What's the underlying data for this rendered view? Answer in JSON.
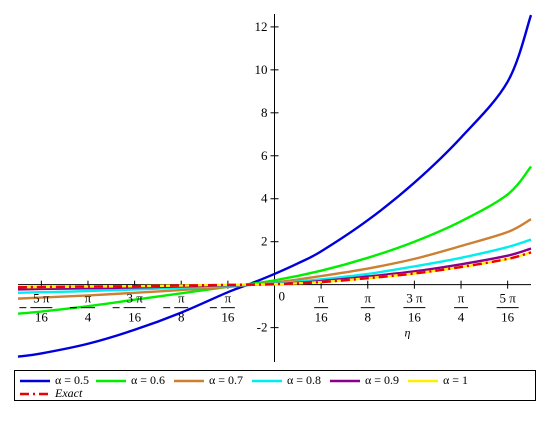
{
  "chart_data": {
    "type": "line",
    "xlabel": "η",
    "ylabel": "",
    "xlim": [
      -1.08,
      1.08
    ],
    "ylim": [
      -3.6,
      12.6
    ],
    "grid": false,
    "legend_position": "bottom",
    "y_ticks": [
      {
        "value": -2,
        "label": "-2"
      },
      {
        "value": 2,
        "label": "2"
      },
      {
        "value": 4,
        "label": "4"
      },
      {
        "value": 6,
        "label": "6"
      },
      {
        "value": 8,
        "label": "8"
      },
      {
        "value": 10,
        "label": "10"
      },
      {
        "value": 12,
        "label": "12"
      }
    ],
    "x_ticks": [
      {
        "value": -0.9817,
        "num": "5 π",
        "den": "16",
        "neg": true
      },
      {
        "value": -0.7854,
        "num": "π",
        "den": "4",
        "neg": true
      },
      {
        "value": -0.589,
        "num": "3 π",
        "den": "16",
        "neg": true
      },
      {
        "value": -0.3927,
        "num": "π",
        "den": "8",
        "neg": true
      },
      {
        "value": -0.1963,
        "num": "π",
        "den": "16",
        "neg": true
      },
      {
        "value": 0.1963,
        "num": "π",
        "den": "16",
        "neg": false
      },
      {
        "value": 0.3927,
        "num": "π",
        "den": "8",
        "neg": false
      },
      {
        "value": 0.589,
        "num": "3 π",
        "den": "16",
        "neg": false
      },
      {
        "value": 0.7854,
        "num": "π",
        "den": "4",
        "neg": false
      },
      {
        "value": 0.9817,
        "num": "5 π",
        "den": "16",
        "neg": false
      }
    ],
    "origin_label": "0",
    "series": [
      {
        "name": "α = 0.5",
        "color": "#0000dd",
        "dash": "solid",
        "x": [
          -1.08,
          -0.9817,
          -0.7854,
          -0.589,
          -0.3927,
          -0.1963,
          -0.1,
          0,
          0.1,
          0.1963,
          0.3927,
          0.589,
          0.7854,
          0.9817,
          1.08
        ],
        "y": [
          -3.35,
          -3.2,
          -2.75,
          -2.1,
          -1.3,
          -0.35,
          0.05,
          0.5,
          1.0,
          1.55,
          3.0,
          4.75,
          6.85,
          9.45,
          12.55
        ]
      },
      {
        "name": "α = 0.6",
        "color": "#00ee00",
        "dash": "solid",
        "x": [
          -1.08,
          -0.9817,
          -0.7854,
          -0.589,
          -0.3927,
          -0.1963,
          0,
          0.1963,
          0.3927,
          0.589,
          0.7854,
          0.9817,
          1.08
        ],
        "y": [
          -1.35,
          -1.25,
          -1.0,
          -0.7,
          -0.4,
          -0.1,
          0.2,
          0.65,
          1.25,
          2.0,
          2.95,
          4.2,
          5.5
        ]
      },
      {
        "name": "α = 0.7",
        "color": "#cd7f32",
        "dash": "solid",
        "x": [
          -1.08,
          -0.9817,
          -0.7854,
          -0.589,
          -0.3927,
          -0.1963,
          0,
          0.1963,
          0.3927,
          0.589,
          0.7854,
          0.9817,
          1.08
        ],
        "y": [
          -0.65,
          -0.6,
          -0.5,
          -0.38,
          -0.25,
          -0.1,
          0.1,
          0.4,
          0.75,
          1.2,
          1.8,
          2.45,
          3.05
        ]
      },
      {
        "name": "α = 0.8",
        "color": "#00eeee",
        "dash": "solid",
        "x": [
          -1.08,
          -0.9817,
          -0.7854,
          -0.589,
          -0.3927,
          -0.1963,
          0,
          0.1963,
          0.3927,
          0.589,
          0.7854,
          0.9817,
          1.08
        ],
        "y": [
          -0.38,
          -0.35,
          -0.3,
          -0.22,
          -0.14,
          -0.06,
          0.05,
          0.25,
          0.5,
          0.85,
          1.25,
          1.75,
          2.1
        ]
      },
      {
        "name": "α = 0.9",
        "color": "#8b008b",
        "dash": "solid",
        "x": [
          -1.08,
          -0.9817,
          -0.7854,
          -0.589,
          -0.3927,
          -0.1963,
          0,
          0.1963,
          0.3927,
          0.589,
          0.7854,
          0.9817,
          1.08
        ],
        "y": [
          -0.22,
          -0.2,
          -0.17,
          -0.13,
          -0.08,
          -0.03,
          0.03,
          0.17,
          0.38,
          0.62,
          0.95,
          1.35,
          1.68
        ]
      },
      {
        "name": "α = 1",
        "color": "#ffee00",
        "dash": "solid",
        "x": [
          -1.08,
          -0.9817,
          -0.7854,
          -0.589,
          -0.3927,
          -0.1963,
          0,
          0.1963,
          0.3927,
          0.589,
          0.7854,
          0.9817,
          1.08
        ],
        "y": [
          -0.12,
          -0.11,
          -0.09,
          -0.07,
          -0.04,
          -0.01,
          0.02,
          0.12,
          0.3,
          0.52,
          0.82,
          1.2,
          1.5
        ]
      },
      {
        "name": "Exact",
        "color": "#ee0000",
        "dash": "dashdot",
        "x": [
          -1.08,
          -0.9817,
          -0.7854,
          -0.589,
          -0.3927,
          -0.1963,
          0,
          0.1963,
          0.3927,
          0.589,
          0.7854,
          0.9817,
          1.08
        ],
        "y": [
          -0.12,
          -0.11,
          -0.09,
          -0.07,
          -0.04,
          -0.01,
          0.02,
          0.12,
          0.3,
          0.52,
          0.82,
          1.2,
          1.5
        ]
      }
    ]
  },
  "legend": {
    "items": [
      {
        "label": "α = 0.5",
        "color": "#0000dd",
        "dash": "solid",
        "italic": false
      },
      {
        "label": "α = 0.6",
        "color": "#00ee00",
        "dash": "solid",
        "italic": false
      },
      {
        "label": "α = 0.7",
        "color": "#cd7f32",
        "dash": "solid",
        "italic": false
      },
      {
        "label": "α = 0.8",
        "color": "#00eeee",
        "dash": "solid",
        "italic": false
      },
      {
        "label": "α = 0.9",
        "color": "#8b008b",
        "dash": "solid",
        "italic": false
      },
      {
        "label": "α = 1",
        "color": "#ffee00",
        "dash": "solid",
        "italic": false
      },
      {
        "label": "Exact",
        "color": "#ee0000",
        "dash": "dashdot",
        "italic": true
      }
    ]
  }
}
